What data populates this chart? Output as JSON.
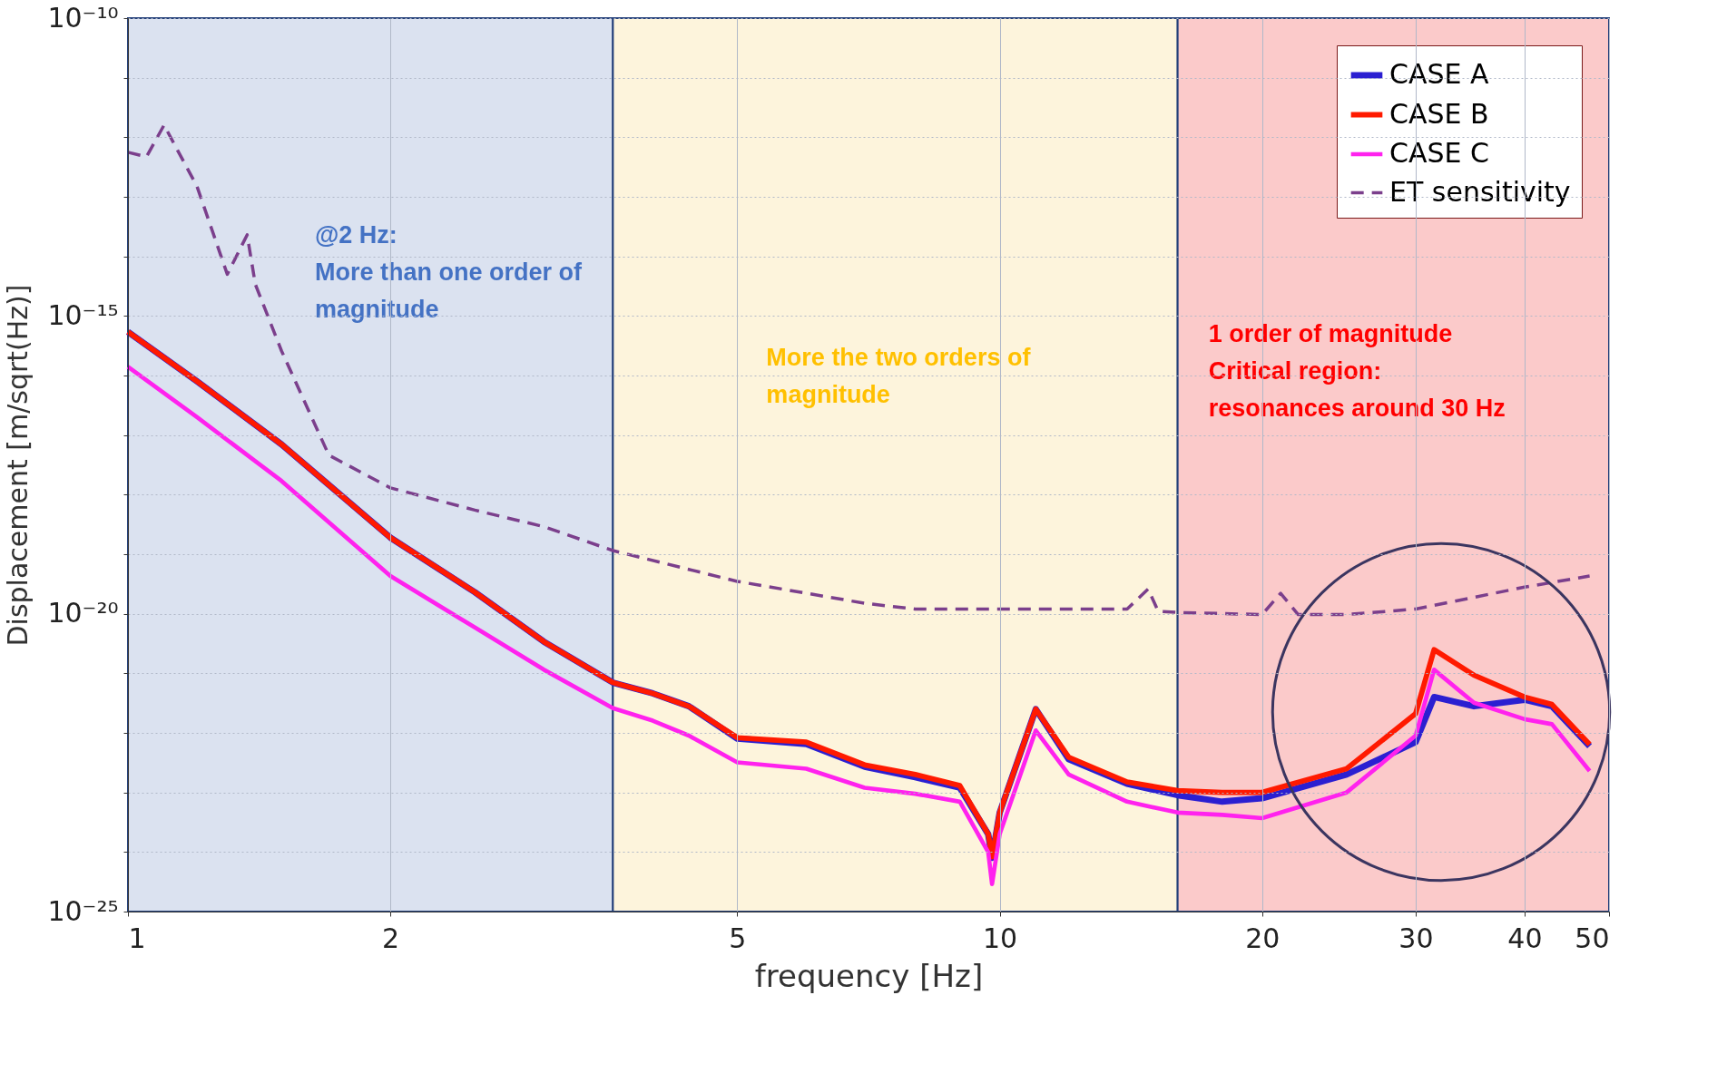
{
  "chart_data": {
    "type": "line",
    "xlabel": "frequency [Hz]",
    "ylabel": "Displacement [m/sqrt(Hz)]",
    "log": "xy",
    "x": [
      1,
      1.2,
      1.5,
      2,
      2.5,
      3,
      3.6,
      4,
      4.4,
      5,
      6,
      7,
      8,
      9,
      9.7,
      9.8,
      10,
      11,
      12,
      14,
      16,
      18,
      20,
      25,
      30,
      31.5,
      35,
      40,
      43,
      47.5
    ],
    "series": [
      {
        "name": "CASE A",
        "color": "#2b1fd1",
        "line_style": "solid",
        "values": [
          5.4e-16,
          8e-17,
          7e-18,
          1.9e-19,
          2.3e-20,
          3.4e-21,
          7e-22,
          4.6e-22,
          2.8e-22,
          8e-23,
          6.5e-23,
          2.7e-23,
          1.8e-23,
          1.2e-23,
          2e-24,
          8e-25,
          4.6e-24,
          2.5e-22,
          3.6e-23,
          1.4e-23,
          9e-24,
          7e-24,
          8e-24,
          2e-23,
          7e-23,
          4e-22,
          2.8e-22,
          3.6e-22,
          2.8e-22,
          6e-23
        ]
      },
      {
        "name": "CASE B",
        "color": "#ff1a00",
        "line_style": "solid",
        "values": [
          5.4e-16,
          8e-17,
          7e-18,
          1.9e-19,
          2.3e-20,
          3.4e-21,
          7e-22,
          4.6e-22,
          2.8e-22,
          8.3e-23,
          7e-23,
          2.9e-23,
          2e-23,
          1.3e-23,
          2e-24,
          8.3e-25,
          4.6e-24,
          2.5e-22,
          3.9e-23,
          1.5e-23,
          1.07e-23,
          1e-23,
          1e-23,
          2.5e-23,
          2.1e-22,
          2.5e-21,
          9.3e-22,
          4e-22,
          3e-22,
          6.4e-23
        ]
      },
      {
        "name": "CASE C",
        "color": "#ff22ee",
        "line_style": "solid",
        "values": [
          1.4e-16,
          2e-17,
          1.7e-18,
          4.3e-20,
          5.9e-21,
          1.15e-21,
          2.6e-22,
          1.6e-22,
          9e-23,
          3.2e-23,
          2.5e-23,
          1.2e-23,
          9.5e-24,
          7e-24,
          1e-24,
          2.9e-25,
          2e-24,
          1.1e-22,
          2e-23,
          7e-24,
          4.6e-24,
          4.2e-24,
          3.7e-24,
          1e-23,
          9e-23,
          1.15e-21,
          3.2e-22,
          1.7e-22,
          1.4e-22,
          2.3e-23
        ]
      },
      {
        "name": "ET sensitivity",
        "color": "#7b3f8c",
        "line_style": "dashed",
        "x": [
          1,
          1.05,
          1.1,
          1.2,
          1.3,
          1.37,
          1.4,
          1.5,
          1.7,
          2,
          2.5,
          3,
          3.6,
          5,
          7,
          8,
          10,
          14,
          14.8,
          15.2,
          16,
          20,
          21,
          22,
          25,
          30,
          40,
          47.5
        ],
        "values": [
          5.6e-13,
          4.7e-13,
          1.6e-12,
          1.5e-13,
          5e-15,
          2.3e-14,
          3.4e-15,
          2.6e-16,
          4.6e-18,
          1.3e-18,
          5.5e-19,
          2.9e-19,
          1.15e-19,
          3.5e-20,
          1.5e-20,
          1.2e-20,
          1.2e-20,
          1.2e-20,
          2.6e-20,
          1.1e-20,
          1.05e-20,
          9.7e-21,
          2.2e-20,
          9.7e-21,
          9.7e-21,
          1.2e-20,
          2.8e-20,
          4.3e-20
        ]
      }
    ],
    "xlim": [
      1,
      50
    ],
    "xticks": [
      1,
      2,
      5,
      10,
      20,
      30,
      40,
      50
    ],
    "ylim": [
      1e-25,
      1e-10
    ],
    "yticks": [
      {
        "value": 1e-25,
        "label": "10⁻²⁵"
      },
      {
        "value": 1e-24,
        "label": null
      },
      {
        "value": 1e-23,
        "label": null
      },
      {
        "value": 1e-22,
        "label": null
      },
      {
        "value": 1e-21,
        "label": null
      },
      {
        "value": 1e-20,
        "label": "10⁻²⁰"
      },
      {
        "value": 1e-19,
        "label": null
      },
      {
        "value": 1e-18,
        "label": null
      },
      {
        "value": 1e-17,
        "label": null
      },
      {
        "value": 1e-16,
        "label": null
      },
      {
        "value": 1e-15,
        "label": "10⁻¹⁵"
      },
      {
        "value": 1e-14,
        "label": null
      },
      {
        "value": 1e-13,
        "label": null
      },
      {
        "value": 1e-12,
        "label": null
      },
      {
        "value": 1e-11,
        "label": null
      },
      {
        "value": 1e-10,
        "label": "10⁻¹⁰"
      }
    ],
    "grid": true,
    "legend": "top right",
    "bands": [
      {
        "axis": "x",
        "from": 1,
        "to": 3.6,
        "color": "#dbe2f0",
        "label": "@2 Hz:\nMore than one order of\nmagnitude"
      },
      {
        "axis": "x",
        "from": 3.6,
        "to": 16,
        "color": "#fdf4dc",
        "label": "More the two orders of\nmagnitude"
      },
      {
        "axis": "x",
        "from": 16,
        "to": 50,
        "color": "#fbcaca",
        "label": "1 order of magnitude\nCritical region:\nresonances around 30 Hz"
      }
    ]
  }
}
